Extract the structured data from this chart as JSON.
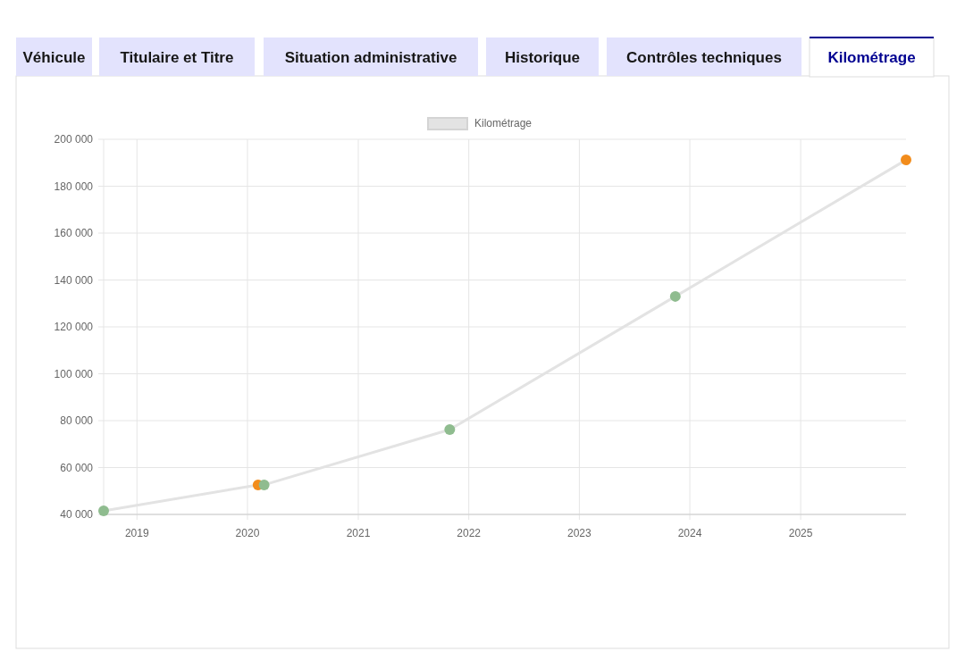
{
  "chart_data": {
    "type": "line",
    "legend": "top",
    "grid": true,
    "marker": "circle",
    "annotations": [
      "Véhicule",
      "Titulaire et Titre",
      "Situation administrative",
      "Historique",
      "Contrôles techniques",
      "Kilométrage"
    ],
    "xlim": [
      "2018-09-13",
      "2025-12-15"
    ],
    "xticks": [
      {
        "value": "2019-01-01",
        "label": "2019"
      },
      {
        "value": "2020-01-01",
        "label": "2020"
      },
      {
        "value": "2021-01-01",
        "label": "2021"
      },
      {
        "value": "2022-01-01",
        "label": "2022"
      },
      {
        "value": "2023-01-01",
        "label": "2023"
      },
      {
        "value": "2024-01-01",
        "label": "2024"
      },
      {
        "value": "2025-01-01",
        "label": "2025"
      }
    ],
    "ylim": [
      40000,
      200000
    ],
    "yticks": [
      {
        "value": 40000,
        "label": "40 000"
      },
      {
        "value": 60000,
        "label": "60 000"
      },
      {
        "value": 80000,
        "label": "80 000"
      },
      {
        "value": 100000,
        "label": "100 000"
      },
      {
        "value": 120000,
        "label": "120 000"
      },
      {
        "value": 140000,
        "label": "140 000"
      },
      {
        "value": 160000,
        "label": "160 000"
      },
      {
        "value": 180000,
        "label": "180 000"
      },
      {
        "value": 200000,
        "label": "200 000"
      }
    ],
    "series": [
      {
        "name": "Kilométrage",
        "color": "#e3e3e3",
        "x": [
          "2018-09-13",
          "2020-02-05",
          "2020-02-25",
          "2021-10-30",
          "2023-11-14",
          "2025-12-15"
        ],
        "values": [
          41500,
          52600,
          52600,
          76200,
          133000,
          191200
        ],
        "colors": [
          "#8fbc8f",
          "#f28c1b",
          "#8fbc8f",
          "#8fbc8f",
          "#8fbc8f",
          "#f28c1b"
        ]
      }
    ]
  }
}
